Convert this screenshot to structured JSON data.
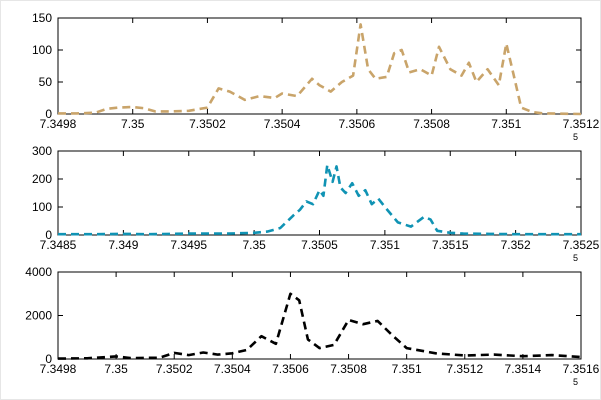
{
  "figure": {
    "background": "#ffffff",
    "axis_color": "#000000"
  },
  "chart_data": [
    {
      "type": "line",
      "line_style": "dashed",
      "color": "#C9A46A",
      "title": "",
      "xlabel": "",
      "ylabel": "",
      "grid": false,
      "legend": null,
      "xlim": [
        7.3498,
        7.3512
      ],
      "ylim": [
        0,
        150
      ],
      "xticks": [
        7.3498,
        7.35,
        7.3502,
        7.3504,
        7.3506,
        7.3508,
        7.351,
        7.3512
      ],
      "xtick_labels": [
        "7.3498",
        "7.35",
        "7.3502",
        "7.3504",
        "7.3506",
        "7.3508",
        "7.351",
        "7.3512"
      ],
      "yticks": [
        0,
        50,
        100,
        150
      ],
      "ytick_labels": [
        "0",
        "50",
        "100",
        "150"
      ],
      "x_exponent_label": "5",
      "x": [
        7.3498,
        7.34985,
        7.3499,
        7.34993,
        7.34996,
        7.35,
        7.35003,
        7.35006,
        7.3501,
        7.35015,
        7.3502,
        7.35023,
        7.35026,
        7.3503,
        7.35034,
        7.35038,
        7.3504,
        7.35044,
        7.35048,
        7.3505,
        7.35053,
        7.35056,
        7.35059,
        7.35061,
        7.35063,
        7.35065,
        7.35068,
        7.3507,
        7.35072,
        7.35074,
        7.35077,
        7.3508,
        7.35082,
        7.35085,
        7.35088,
        7.3509,
        7.35092,
        7.35095,
        7.35098,
        7.351,
        7.35102,
        7.35104,
        7.35107,
        7.3511,
        7.3512
      ],
      "y": [
        1,
        1,
        2,
        8,
        10,
        11,
        9,
        4,
        4,
        5,
        10,
        40,
        35,
        22,
        28,
        25,
        32,
        28,
        55,
        45,
        35,
        50,
        60,
        140,
        70,
        55,
        58,
        95,
        100,
        65,
        70,
        60,
        105,
        70,
        60,
        80,
        50,
        70,
        45,
        110,
        60,
        10,
        3,
        1,
        0
      ]
    },
    {
      "type": "line",
      "line_style": "dashed",
      "color": "#1093B4",
      "title": "",
      "xlabel": "",
      "ylabel": "",
      "grid": false,
      "legend": null,
      "xlim": [
        7.3485,
        7.3525
      ],
      "ylim": [
        0,
        300
      ],
      "xticks": [
        7.3485,
        7.349,
        7.3495,
        7.35,
        7.3505,
        7.351,
        7.3515,
        7.352,
        7.3525
      ],
      "xtick_labels": [
        "7.3485",
        "7.349",
        "7.3495",
        "7.35",
        "7.3505",
        "7.351",
        "7.3515",
        "7.352",
        "7.3525"
      ],
      "yticks": [
        0,
        100,
        200,
        300
      ],
      "ytick_labels": [
        "0",
        "100",
        "200",
        "300"
      ],
      "x_exponent_label": "5",
      "x": [
        7.3485,
        7.3488,
        7.349,
        7.3492,
        7.3495,
        7.3498,
        7.35,
        7.3501,
        7.3502,
        7.3503,
        7.35035,
        7.3504,
        7.35045,
        7.3505,
        7.35053,
        7.35056,
        7.3506,
        7.35063,
        7.35066,
        7.3507,
        7.35075,
        7.3508,
        7.35085,
        7.3509,
        7.35095,
        7.351,
        7.3511,
        7.3512,
        7.3513,
        7.35135,
        7.3514,
        7.3515,
        7.3516,
        7.3518,
        7.352,
        7.3522,
        7.3525
      ],
      "y": [
        3,
        3,
        4,
        3,
        5,
        5,
        8,
        12,
        25,
        70,
        90,
        120,
        110,
        160,
        140,
        250,
        190,
        245,
        170,
        150,
        185,
        140,
        160,
        110,
        130,
        100,
        45,
        30,
        65,
        55,
        15,
        8,
        5,
        4,
        3,
        3,
        3
      ]
    },
    {
      "type": "line",
      "line_style": "dashed",
      "color": "#000000",
      "title": "",
      "xlabel": "",
      "ylabel": "",
      "grid": false,
      "legend": null,
      "xlim": [
        7.3498,
        7.3516
      ],
      "ylim": [
        0,
        4000
      ],
      "xticks": [
        7.3498,
        7.35,
        7.3502,
        7.3504,
        7.3506,
        7.3508,
        7.351,
        7.3512,
        7.3514,
        7.3516
      ],
      "xtick_labels": [
        "7.3498",
        "7.35",
        "7.3502",
        "7.3504",
        "7.3506",
        "7.3508",
        "7.351",
        "7.3512",
        "7.3514",
        "7.3516"
      ],
      "yticks": [
        0,
        2000,
        4000
      ],
      "ytick_labels": [
        "0",
        "2000",
        "4000"
      ],
      "x_exponent_label": "5",
      "x": [
        7.3498,
        7.3499,
        7.35,
        7.35005,
        7.3501,
        7.35015,
        7.3502,
        7.35025,
        7.3503,
        7.35035,
        7.3504,
        7.35045,
        7.3505,
        7.35055,
        7.3506,
        7.35063,
        7.35066,
        7.3507,
        7.35075,
        7.3508,
        7.35085,
        7.3509,
        7.35095,
        7.351,
        7.3511,
        7.3512,
        7.3513,
        7.3514,
        7.3515,
        7.3516
      ],
      "y": [
        20,
        30,
        120,
        40,
        50,
        60,
        280,
        180,
        300,
        200,
        260,
        420,
        1050,
        700,
        3000,
        2700,
        900,
        500,
        650,
        1800,
        1600,
        1750,
        1100,
        500,
        260,
        160,
        200,
        130,
        180,
        90
      ]
    }
  ]
}
